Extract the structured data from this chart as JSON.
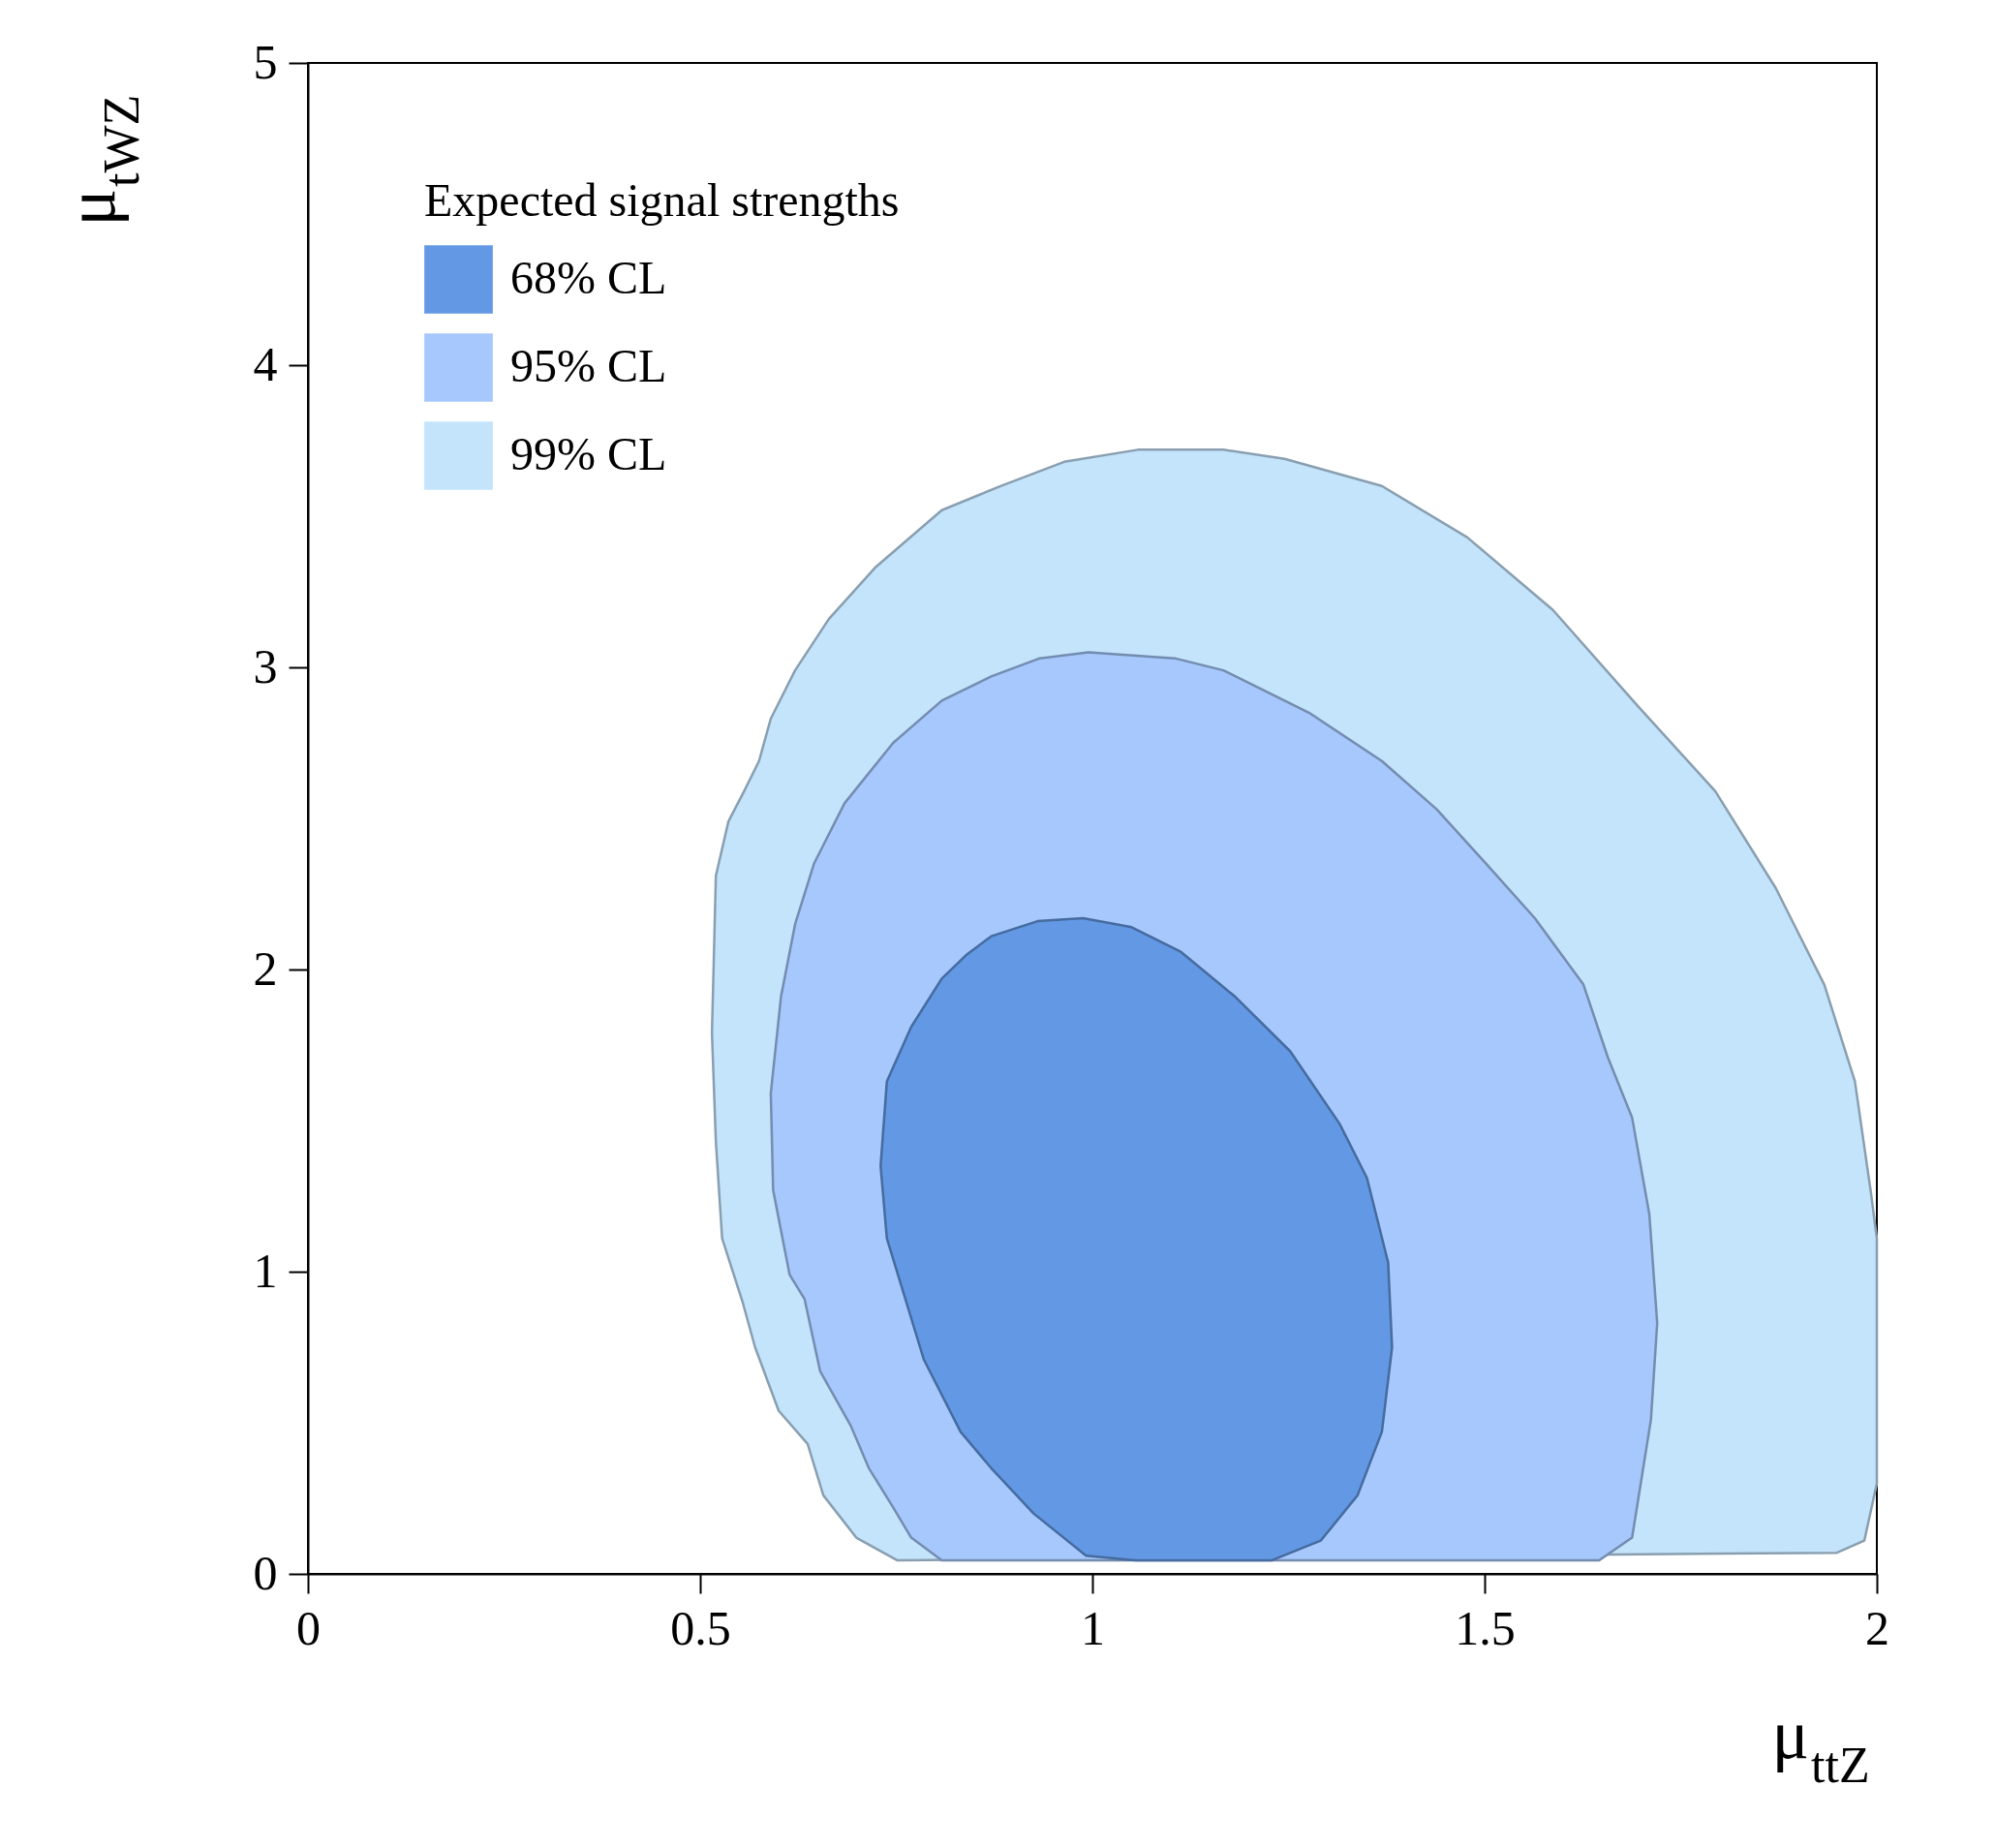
{
  "chart_data": {
    "type": "area",
    "xlabel": "μ$_{ttZ}$",
    "ylabel": "μ$_{tWZ}$",
    "legend_title": "Expected signal strengths",
    "legend": "top left",
    "grid": false,
    "xlim": [
      0,
      2
    ],
    "ylim": [
      0,
      5
    ],
    "xticks": [
      0,
      0.5,
      1,
      1.5,
      2
    ],
    "yticks": [
      0,
      1,
      2,
      3,
      4,
      5
    ],
    "series": [
      {
        "name": "68% CL",
        "color": "#6399e4",
        "x": [
          1.229,
          1.291,
          1.338,
          1.369,
          1.382,
          1.377,
          1.35,
          1.315,
          1.252,
          1.182,
          1.112,
          1.05,
          0.988,
          0.93,
          0.871,
          0.84,
          0.808,
          0.769,
          0.738,
          0.73,
          0.738,
          0.785,
          0.832,
          0.871,
          0.925,
          0.992,
          1.055
        ],
        "values": [
          0.045,
          0.11,
          0.26,
          0.47,
          0.75,
          1.03,
          1.31,
          1.49,
          1.73,
          1.91,
          2.06,
          2.14,
          2.17,
          2.16,
          2.11,
          2.05,
          1.97,
          1.81,
          1.63,
          1.35,
          1.11,
          0.71,
          0.47,
          0.35,
          0.2,
          0.06,
          0.045
        ]
      },
      {
        "name": "95% CL",
        "color": "#a6c8fc",
        "x": [
          1.646,
          1.688,
          1.712,
          1.72,
          1.71,
          1.688,
          1.657,
          1.626,
          1.564,
          1.502,
          1.439,
          1.369,
          1.276,
          1.167,
          1.105,
          0.995,
          0.933,
          0.871,
          0.808,
          0.746,
          0.684,
          0.645,
          0.621,
          0.603,
          0.59,
          0.593,
          0.614,
          0.633,
          0.653,
          0.692,
          0.715,
          0.746,
          0.769,
          0.808
        ],
        "values": [
          0.045,
          0.12,
          0.51,
          0.83,
          1.19,
          1.51,
          1.71,
          1.95,
          2.17,
          2.35,
          2.53,
          2.69,
          2.85,
          2.99,
          3.03,
          3.05,
          3.03,
          2.97,
          2.89,
          2.75,
          2.55,
          2.35,
          2.15,
          1.91,
          1.59,
          1.27,
          0.99,
          0.91,
          0.67,
          0.49,
          0.35,
          0.22,
          0.12,
          0.045
        ]
      },
      {
        "name": "99% CL",
        "color": "#c4e4fc",
        "x": [
          1.984,
          1.949,
          0.751,
          0.699,
          0.657,
          0.637,
          0.6,
          0.57,
          0.554,
          0.528,
          0.52,
          0.515,
          0.52,
          0.536,
          0.556,
          0.575,
          0.59,
          0.621,
          0.664,
          0.723,
          0.808,
          0.883,
          0.964,
          1.058,
          1.167,
          1.245,
          1.369,
          1.478,
          1.587,
          1.696,
          1.794,
          1.871,
          1.933,
          1.972,
          1.992,
          2.0,
          2.0
        ],
        "values": [
          0.11,
          0.07,
          0.045,
          0.12,
          0.26,
          0.43,
          0.54,
          0.75,
          0.9,
          1.11,
          1.43,
          1.79,
          2.31,
          2.49,
          2.59,
          2.69,
          2.83,
          2.99,
          3.16,
          3.33,
          3.52,
          3.6,
          3.68,
          3.72,
          3.72,
          3.69,
          3.6,
          3.43,
          3.19,
          2.87,
          2.59,
          2.27,
          1.95,
          1.63,
          1.27,
          1.11,
          0.3
        ]
      }
    ]
  }
}
